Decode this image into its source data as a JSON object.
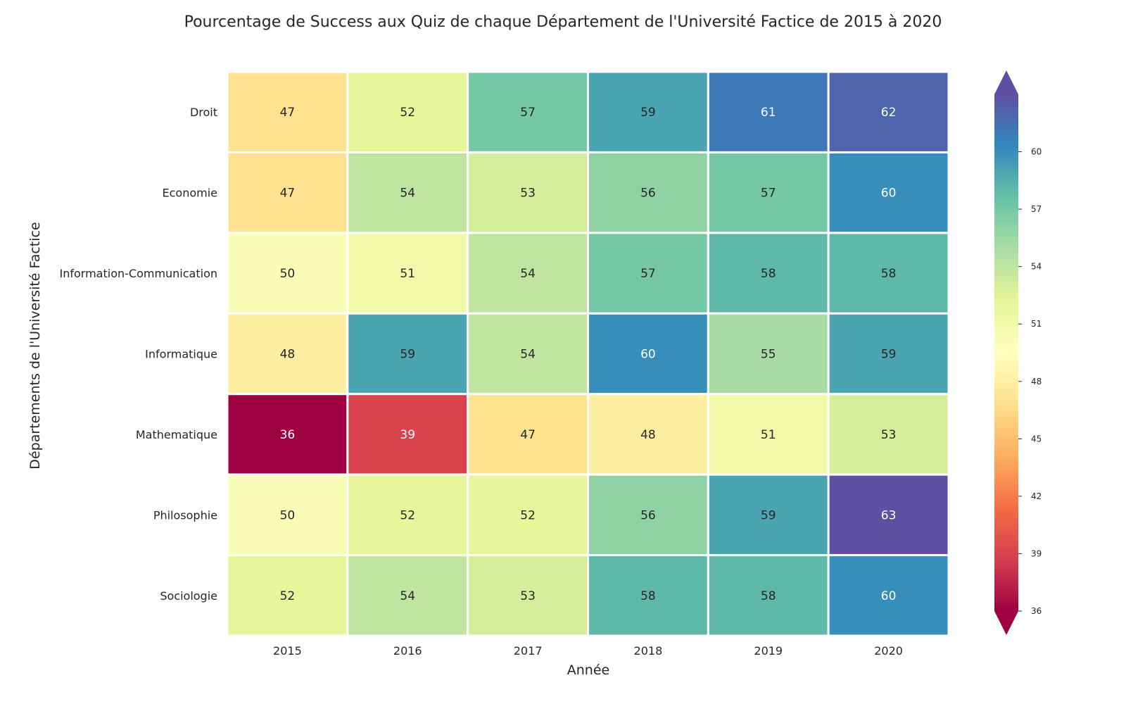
{
  "chart_data": {
    "type": "heatmap",
    "title": "Pourcentage de Success aux Quiz de chaque Département de l'Université Factice de 2015 à 2020",
    "xlabel": "Année",
    "ylabel": "Départements de l'Université Factice",
    "x": [
      "2015",
      "2016",
      "2017",
      "2018",
      "2019",
      "2020"
    ],
    "y": [
      "Droit",
      "Economie",
      "Information-Communication",
      "Informatique",
      "Mathematique",
      "Philosophie",
      "Sociologie"
    ],
    "values": [
      [
        47,
        52,
        57,
        59,
        61,
        62
      ],
      [
        47,
        54,
        53,
        56,
        57,
        60
      ],
      [
        50,
        51,
        54,
        57,
        58,
        58
      ],
      [
        48,
        59,
        54,
        60,
        55,
        59
      ],
      [
        36,
        39,
        47,
        48,
        51,
        53
      ],
      [
        50,
        52,
        52,
        56,
        59,
        63
      ],
      [
        52,
        54,
        53,
        58,
        58,
        60
      ]
    ],
    "annotated": true,
    "colormap": "Spectral",
    "vmin": 36,
    "vmax": 63,
    "colorbar": {
      "ticks": [
        36,
        39,
        42,
        45,
        48,
        51,
        54,
        57,
        60
      ],
      "extend": "both"
    },
    "cell_border_color": "#ffffff"
  }
}
